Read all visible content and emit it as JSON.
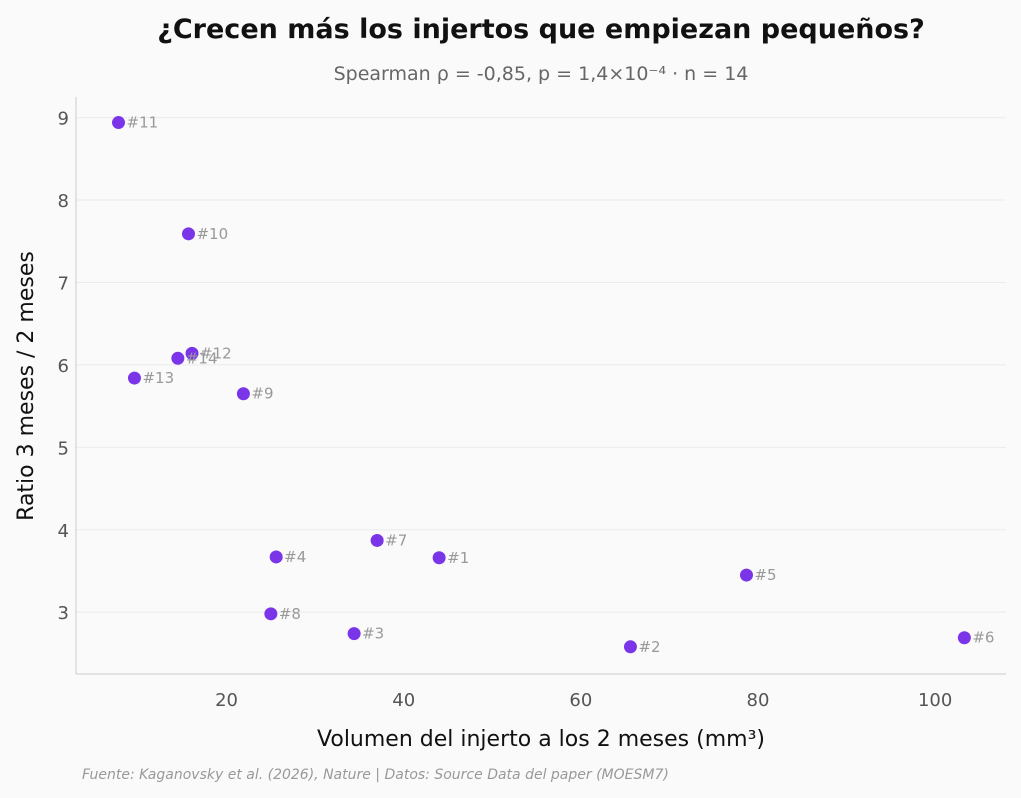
{
  "chart_data": {
    "type": "scatter",
    "title": "¿Crecen más los injertos que empiezan pequeños?",
    "subtitle": "Spearman ρ = -0,85, p = 1,4×10⁻⁴ · n = 14",
    "xlabel": "Volumen del injerto a los 2 meses (mm³)",
    "ylabel": "Ratio 3 meses / 2 meses",
    "xlim": [
      3,
      108
    ],
    "ylim": [
      2.25,
      9.25
    ],
    "xticks": [
      20,
      40,
      60,
      80,
      100
    ],
    "yticks": [
      3,
      4,
      5,
      6,
      7,
      8,
      9
    ],
    "grid": "horizontal",
    "point_color": "#7b35e8",
    "points": [
      {
        "label": "#1",
        "x": 44.0,
        "y": 3.66
      },
      {
        "label": "#2",
        "x": 65.6,
        "y": 2.58
      },
      {
        "label": "#3",
        "x": 34.4,
        "y": 2.74
      },
      {
        "label": "#4",
        "x": 25.6,
        "y": 3.67
      },
      {
        "label": "#5",
        "x": 78.7,
        "y": 3.45
      },
      {
        "label": "#6",
        "x": 103.3,
        "y": 2.69
      },
      {
        "label": "#7",
        "x": 37.0,
        "y": 3.87
      },
      {
        "label": "#8",
        "x": 25.0,
        "y": 2.98
      },
      {
        "label": "#9",
        "x": 21.9,
        "y": 5.65
      },
      {
        "label": "#10",
        "x": 15.7,
        "y": 7.59
      },
      {
        "label": "#11",
        "x": 7.8,
        "y": 8.94
      },
      {
        "label": "#12",
        "x": 16.1,
        "y": 6.14
      },
      {
        "label": "#13",
        "x": 9.6,
        "y": 5.84
      },
      {
        "label": "#14",
        "x": 14.5,
        "y": 6.08
      }
    ],
    "footer": "Fuente: Kaganovsky et al. (2026), Nature | Datos: Source Data del paper (MOESM7)"
  }
}
